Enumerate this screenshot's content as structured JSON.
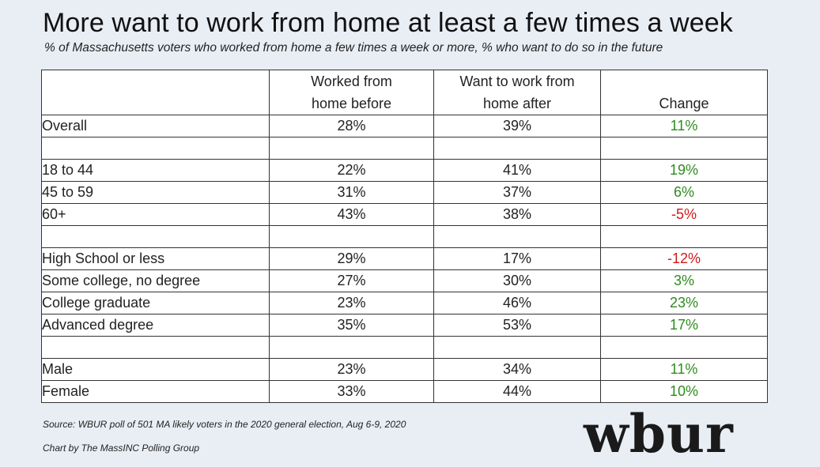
{
  "title": "More want to work from home at least a few times a week",
  "subtitle": "% of Massachusetts voters who worked from home a few times a week or more, % who want to do so in the future",
  "colors": {
    "positive": "#2e8b1e",
    "negative": "#d0191b"
  },
  "chart_data": {
    "type": "table",
    "columns": [
      "",
      "Worked from home before",
      "Want to work from home after",
      "Change"
    ],
    "header": {
      "col1_line1": "Worked from",
      "col1_line2": "home before",
      "col2_line1": "Want to work from",
      "col2_line2": "home after",
      "col3_line2": "Change"
    },
    "rows": [
      {
        "label": "Overall",
        "before": "28%",
        "after": "39%",
        "change": "11%",
        "sign": "pos"
      },
      null,
      {
        "label": "18 to 44",
        "before": "22%",
        "after": "41%",
        "change": "19%",
        "sign": "pos"
      },
      {
        "label": "45 to 59",
        "before": "31%",
        "after": "37%",
        "change": "6%",
        "sign": "pos"
      },
      {
        "label": "60+",
        "before": "43%",
        "after": "38%",
        "change": "-5%",
        "sign": "neg"
      },
      null,
      {
        "label": "High School or less",
        "before": "29%",
        "after": "17%",
        "change": "-12%",
        "sign": "neg"
      },
      {
        "label": "Some college, no degree",
        "before": "27%",
        "after": "30%",
        "change": "3%",
        "sign": "pos"
      },
      {
        "label": "College graduate",
        "before": "23%",
        "after": "46%",
        "change": "23%",
        "sign": "pos"
      },
      {
        "label": "Advanced degree",
        "before": "35%",
        "after": "53%",
        "change": "17%",
        "sign": "pos"
      },
      null,
      {
        "label": "Male",
        "before": "23%",
        "after": "34%",
        "change": "11%",
        "sign": "pos"
      },
      {
        "label": "Female",
        "before": "33%",
        "after": "44%",
        "change": "10%",
        "sign": "pos"
      }
    ]
  },
  "source": "Source: WBUR poll of 501 MA likely voters in the 2020 general election, Aug 6-9, 2020",
  "credit": "Chart by The MassINC Polling Group",
  "logo_text": "wbur"
}
